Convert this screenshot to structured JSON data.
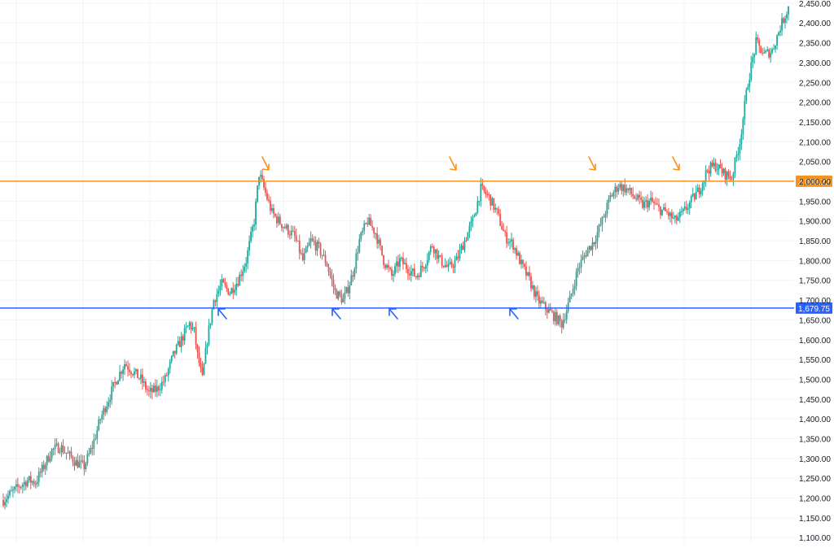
{
  "chart_data": {
    "type": "candlestick",
    "title": "",
    "xlabel": "",
    "ylabel": "",
    "ylim": [
      1084,
      2458
    ],
    "grid": true,
    "y_ticks": [
      1100,
      1150,
      1200,
      1250,
      1300,
      1350,
      1400,
      1450,
      1500,
      1550,
      1600,
      1650,
      1700,
      1750,
      1800,
      1850,
      1900,
      1950,
      2000,
      2050,
      2100,
      2150,
      2200,
      2250,
      2300,
      2350,
      2400,
      2450
    ],
    "y_tick_labels": [
      "1,100.00",
      "1,150.00",
      "1,200.00",
      "1,250.00",
      "1,300.00",
      "1,350.00",
      "1,400.00",
      "1,450.00",
      "1,500.00",
      "1,550.00",
      "1,600.00",
      "1,650.00",
      "1,700.00",
      "1,750.00",
      "1,800.00",
      "1,850.00",
      "1,900.00",
      "1,950.00",
      "2,000.00",
      "2,050.00",
      "2,100.00",
      "2,150.00",
      "2,200.00",
      "2,250.00",
      "2,300.00",
      "2,350.00",
      "2,400.00",
      "2,450.00"
    ],
    "horizontal_lines": [
      {
        "value": 2000.22,
        "label": "2,000.22",
        "color": "#f7931a"
      },
      {
        "value": 1679.75,
        "label": "1,679.75",
        "color": "#2962ff"
      }
    ],
    "annotations": [
      {
        "type": "arrow",
        "direction": "down",
        "color": "#f7931a",
        "near_value": 2035
      },
      {
        "type": "arrow",
        "direction": "down",
        "color": "#f7931a",
        "near_value": 2035
      },
      {
        "type": "arrow",
        "direction": "down",
        "color": "#f7931a",
        "near_value": 2035
      },
      {
        "type": "arrow",
        "direction": "down",
        "color": "#f7931a",
        "near_value": 2035
      },
      {
        "type": "arrow",
        "direction": "up",
        "color": "#2962ff",
        "near_value": 1655
      },
      {
        "type": "arrow",
        "direction": "up",
        "color": "#2962ff",
        "near_value": 1655
      },
      {
        "type": "arrow",
        "direction": "up",
        "color": "#2962ff",
        "near_value": 1655
      },
      {
        "type": "arrow",
        "direction": "up",
        "color": "#2962ff",
        "near_value": 1655
      }
    ],
    "colors": {
      "up": "#26a69a",
      "down": "#ef5350",
      "grid": "#f0f3fa",
      "axis_text": "#131722"
    },
    "price_path": [
      [
        0,
        1195
      ],
      [
        10,
        1230
      ],
      [
        15,
        1245
      ],
      [
        20,
        1240
      ],
      [
        25,
        1280
      ],
      [
        30,
        1320
      ],
      [
        35,
        1330
      ],
      [
        40,
        1310
      ],
      [
        45,
        1290
      ],
      [
        50,
        1280
      ],
      [
        55,
        1330
      ],
      [
        60,
        1400
      ],
      [
        65,
        1450
      ],
      [
        70,
        1500
      ],
      [
        75,
        1540
      ],
      [
        80,
        1520
      ],
      [
        85,
        1500
      ],
      [
        90,
        1465
      ],
      [
        95,
        1475
      ],
      [
        100,
        1500
      ],
      [
        105,
        1560
      ],
      [
        110,
        1600
      ],
      [
        115,
        1640
      ],
      [
        118,
        1620
      ],
      [
        120,
        1560
      ],
      [
        123,
        1500
      ],
      [
        126,
        1600
      ],
      [
        130,
        1700
      ],
      [
        135,
        1740
      ],
      [
        140,
        1720
      ],
      [
        145,
        1750
      ],
      [
        150,
        1800
      ],
      [
        155,
        1900
      ],
      [
        158,
        2020
      ],
      [
        162,
        1970
      ],
      [
        166,
        1920
      ],
      [
        170,
        1900
      ],
      [
        175,
        1880
      ],
      [
        180,
        1860
      ],
      [
        185,
        1800
      ],
      [
        190,
        1850
      ],
      [
        195,
        1830
      ],
      [
        200,
        1790
      ],
      [
        205,
        1720
      ],
      [
        210,
        1700
      ],
      [
        213,
        1730
      ],
      [
        216,
        1770
      ],
      [
        220,
        1850
      ],
      [
        225,
        1900
      ],
      [
        230,
        1870
      ],
      [
        235,
        1800
      ],
      [
        240,
        1760
      ],
      [
        245,
        1800
      ],
      [
        250,
        1780
      ],
      [
        255,
        1760
      ],
      [
        260,
        1790
      ],
      [
        265,
        1840
      ],
      [
        270,
        1800
      ],
      [
        275,
        1780
      ],
      [
        280,
        1800
      ],
      [
        285,
        1850
      ],
      [
        290,
        1900
      ],
      [
        295,
        1980
      ],
      [
        300,
        1960
      ],
      [
        305,
        1920
      ],
      [
        310,
        1860
      ],
      [
        315,
        1840
      ],
      [
        320,
        1790
      ],
      [
        325,
        1750
      ],
      [
        330,
        1700
      ],
      [
        335,
        1680
      ],
      [
        340,
        1660
      ],
      [
        345,
        1640
      ],
      [
        350,
        1700
      ],
      [
        355,
        1780
      ],
      [
        360,
        1820
      ],
      [
        365,
        1850
      ],
      [
        370,
        1900
      ],
      [
        375,
        1960
      ],
      [
        380,
        1990
      ],
      [
        385,
        1980
      ],
      [
        390,
        1960
      ],
      [
        395,
        1940
      ],
      [
        400,
        1950
      ],
      [
        405,
        1930
      ],
      [
        410,
        1920
      ],
      [
        415,
        1900
      ],
      [
        420,
        1920
      ],
      [
        425,
        1950
      ],
      [
        430,
        1980
      ],
      [
        435,
        2030
      ],
      [
        440,
        2040
      ],
      [
        445,
        2020
      ],
      [
        450,
        2010
      ],
      [
        455,
        2100
      ],
      [
        460,
        2250
      ],
      [
        465,
        2350
      ],
      [
        470,
        2320
      ],
      [
        475,
        2330
      ],
      [
        480,
        2390
      ],
      [
        485,
        2440
      ]
    ]
  }
}
